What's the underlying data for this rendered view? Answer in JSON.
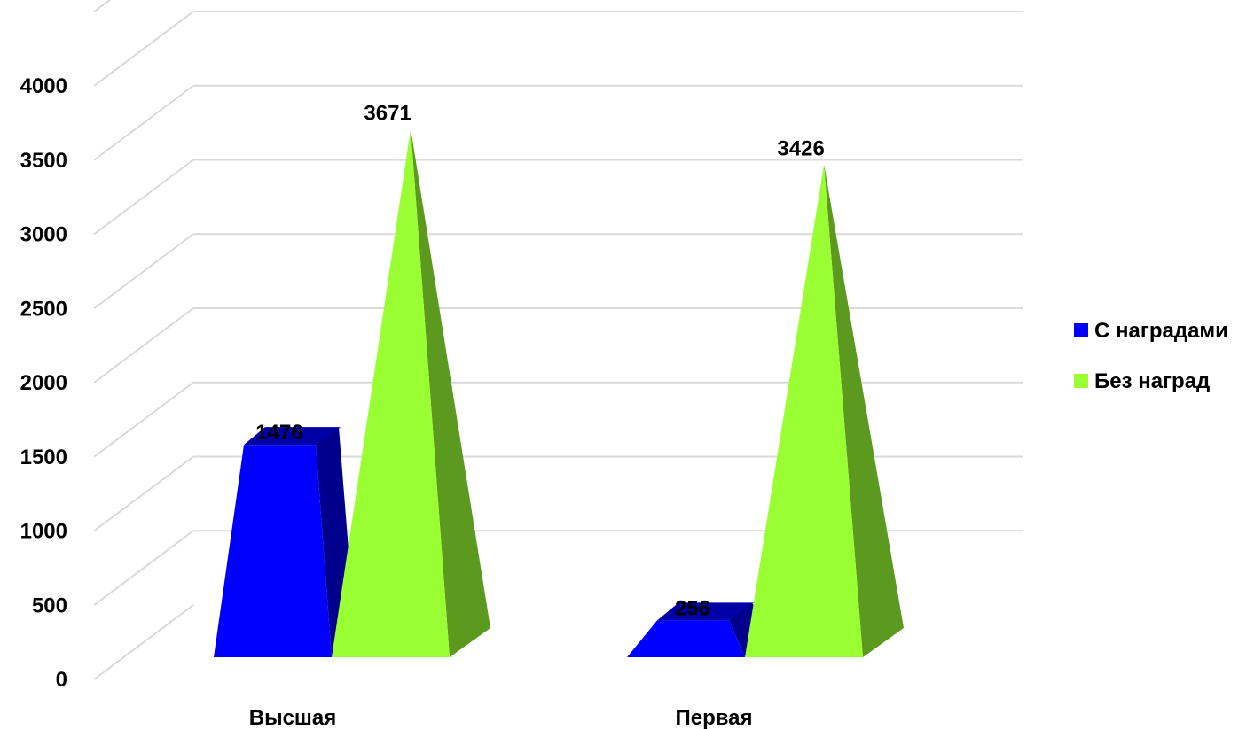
{
  "chart_data": {
    "type": "bar",
    "title": "",
    "xlabel": "",
    "ylabel": "",
    "categories": [
      "Высшая",
      "Первая"
    ],
    "series": [
      {
        "name": "С наградами",
        "values": [
          1476,
          256
        ],
        "color": "#0000FF",
        "shape": "block"
      },
      {
        "name": "Без наград",
        "values": [
          3671,
          3426
        ],
        "color": "#99FF33",
        "shape": "pyramid"
      }
    ],
    "ylim": [
      0,
      4000
    ],
    "yticks": [
      0,
      500,
      1000,
      1500,
      2000,
      2500,
      3000,
      3500,
      4000
    ],
    "grid": true,
    "legend_position": "right",
    "style": "3d"
  }
}
